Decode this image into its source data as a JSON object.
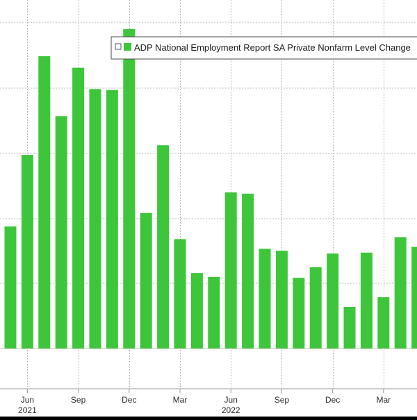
{
  "chart_data": {
    "type": "bar",
    "legend": {
      "label": "ADP National Employment Report SA Private Nonfarm Level Change",
      "placement": "top-right"
    },
    "categories": [
      "2021-05",
      "2021-06",
      "2021-07",
      "2021-08",
      "2021-09",
      "2021-10",
      "2021-11",
      "2021-12",
      "2022-01",
      "2022-02",
      "2022-03",
      "2022-04",
      "2022-05",
      "2022-06",
      "2022-07",
      "2022-08",
      "2022-09",
      "2022-10",
      "2022-11",
      "2022-12",
      "2023-01",
      "2023-02",
      "2023-03",
      "2023-04",
      "2023-05"
    ],
    "values": [
      630,
      1000,
      1510,
      1200,
      1450,
      1340,
      1335,
      1650,
      700,
      1050,
      565,
      390,
      370,
      806,
      800,
      515,
      505,
      365,
      420,
      490,
      215,
      495,
      265,
      575,
      525
    ],
    "ylim": [
      0,
      1800
    ],
    "x_tick_labels": [
      {
        "index": 1,
        "label": "Jun"
      },
      {
        "index": 4,
        "label": "Sep"
      },
      {
        "index": 7,
        "label": "Dec"
      },
      {
        "index": 10,
        "label": "Mar"
      },
      {
        "index": 13,
        "label": "Jun"
      },
      {
        "index": 16,
        "label": "Sep"
      },
      {
        "index": 19,
        "label": "Dec"
      },
      {
        "index": 22,
        "label": "Mar"
      }
    ],
    "year_labels": [
      {
        "index": 1,
        "label": "2021"
      },
      {
        "index": 13,
        "label": "2022"
      }
    ],
    "grid": true,
    "colors": {
      "background": "#000000",
      "plot_background": "#ffffff",
      "bar": "#3dc63a",
      "grid": "#b8b8b8",
      "axis_text": "#2a2a2a",
      "legend_border": "#4a4a4a"
    }
  }
}
